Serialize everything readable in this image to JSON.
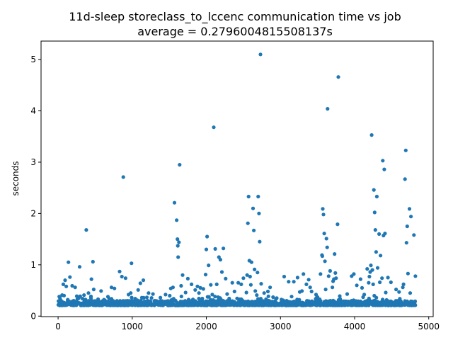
{
  "chart_data": {
    "type": "scatter",
    "title": "11d-sleep storeclass_to_lccenc communication time vs job",
    "subtitle": "average = 0.2796004815508137s",
    "xlabel": "",
    "ylabel": "seconds",
    "xlim": [
      -230,
      5060
    ],
    "ylim": [
      -0.01,
      5.36
    ],
    "xticks": [
      0,
      1000,
      2000,
      3000,
      4000,
      5000
    ],
    "yticks": [
      0,
      1,
      2,
      3,
      4,
      5
    ],
    "grid": false,
    "legend": "none",
    "marker_color": "#1f77b4",
    "points": [
      [
        15,
        0.38
      ],
      [
        40,
        0.3
      ],
      [
        55,
        0.41
      ],
      [
        70,
        0.62
      ],
      [
        80,
        0.4
      ],
      [
        95,
        0.7
      ],
      [
        110,
        0.58
      ],
      [
        130,
        0.32
      ],
      [
        140,
        1.05
      ],
      [
        160,
        0.76
      ],
      [
        190,
        0.59
      ],
      [
        230,
        0.56
      ],
      [
        260,
        0.33
      ],
      [
        290,
        0.96
      ],
      [
        330,
        0.34
      ],
      [
        350,
        0.41
      ],
      [
        380,
        1.68
      ],
      [
        410,
        0.45
      ],
      [
        450,
        0.72
      ],
      [
        470,
        1.06
      ],
      [
        480,
        0.52
      ],
      [
        540,
        0.33
      ],
      [
        580,
        0.49
      ],
      [
        630,
        0.31
      ],
      [
        690,
        0.34
      ],
      [
        720,
        0.56
      ],
      [
        760,
        0.54
      ],
      [
        830,
        0.87
      ],
      [
        860,
        0.77
      ],
      [
        880,
        2.71
      ],
      [
        910,
        0.74
      ],
      [
        950,
        0.42
      ],
      [
        990,
        1.03
      ],
      [
        1040,
        0.34
      ],
      [
        1080,
        0.51
      ],
      [
        1110,
        0.64
      ],
      [
        1130,
        0.36
      ],
      [
        1150,
        0.7
      ],
      [
        1220,
        0.45
      ],
      [
        1280,
        0.43
      ],
      [
        1380,
        0.36
      ],
      [
        1450,
        0.42
      ],
      [
        1520,
        0.54
      ],
      [
        1550,
        0.56
      ],
      [
        1570,
        2.21
      ],
      [
        1600,
        1.87
      ],
      [
        1610,
        1.5
      ],
      [
        1615,
        1.37
      ],
      [
        1620,
        1.15
      ],
      [
        1630,
        1.44
      ],
      [
        1640,
        2.95
      ],
      [
        1660,
        0.59
      ],
      [
        1680,
        0.8
      ],
      [
        1720,
        0.46
      ],
      [
        1750,
        0.73
      ],
      [
        1800,
        0.62
      ],
      [
        1850,
        0.51
      ],
      [
        1880,
        0.58
      ],
      [
        1920,
        0.55
      ],
      [
        1960,
        0.53
      ],
      [
        1990,
        0.81
      ],
      [
        2000,
        1.3
      ],
      [
        2010,
        1.55
      ],
      [
        2030,
        0.99
      ],
      [
        2060,
        0.61
      ],
      [
        2080,
        0.42
      ],
      [
        2100,
        3.68
      ],
      [
        2120,
        1.31
      ],
      [
        2140,
        0.62
      ],
      [
        2170,
        1.15
      ],
      [
        2190,
        1.1
      ],
      [
        2210,
        0.86
      ],
      [
        2230,
        1.32
      ],
      [
        2260,
        0.73
      ],
      [
        2280,
        0.43
      ],
      [
        2350,
        0.65
      ],
      [
        2380,
        0.48
      ],
      [
        2430,
        0.65
      ],
      [
        2470,
        0.33
      ],
      [
        2500,
        0.74
      ],
      [
        2540,
        0.46
      ],
      [
        2560,
        1.81
      ],
      [
        2570,
        2.33
      ],
      [
        2580,
        1.08
      ],
      [
        2590,
        0.77
      ],
      [
        2600,
        0.61
      ],
      [
        2610,
        1.05
      ],
      [
        2630,
        2.1
      ],
      [
        2640,
        1.67
      ],
      [
        2650,
        0.91
      ],
      [
        2660,
        0.49
      ],
      [
        2680,
        0.41
      ],
      [
        2690,
        0.85
      ],
      [
        2700,
        2.33
      ],
      [
        2710,
        2.0
      ],
      [
        2720,
        1.45
      ],
      [
        2730,
        5.1
      ],
      [
        2740,
        0.63
      ],
      [
        2780,
        0.45
      ],
      [
        2830,
        0.48
      ],
      [
        2860,
        0.56
      ],
      [
        2900,
        0.37
      ],
      [
        2950,
        0.35
      ],
      [
        3050,
        0.77
      ],
      [
        3110,
        0.67
      ],
      [
        3150,
        0.38
      ],
      [
        3180,
        0.67
      ],
      [
        3230,
        0.75
      ],
      [
        3260,
        0.47
      ],
      [
        3290,
        0.49
      ],
      [
        3310,
        0.82
      ],
      [
        3350,
        0.62
      ],
      [
        3380,
        0.71
      ],
      [
        3400,
        0.56
      ],
      [
        3420,
        0.48
      ],
      [
        3500,
        0.37
      ],
      [
        3540,
        0.82
      ],
      [
        3560,
        1.19
      ],
      [
        3565,
        1.17
      ],
      [
        3570,
        2.09
      ],
      [
        3580,
        1.98
      ],
      [
        3590,
        1.61
      ],
      [
        3600,
        1.07
      ],
      [
        3610,
        0.52
      ],
      [
        3620,
        1.51
      ],
      [
        3630,
        1.34
      ],
      [
        3635,
        4.04
      ],
      [
        3650,
        0.78
      ],
      [
        3670,
        0.88
      ],
      [
        3700,
        0.56
      ],
      [
        3710,
        0.68
      ],
      [
        3720,
        0.72
      ],
      [
        3730,
        1.21
      ],
      [
        3740,
        0.84
      ],
      [
        3750,
        0.74
      ],
      [
        3770,
        1.79
      ],
      [
        3780,
        4.66
      ],
      [
        3800,
        0.39
      ],
      [
        3900,
        0.43
      ],
      [
        3960,
        0.78
      ],
      [
        3990,
        0.82
      ],
      [
        4030,
        0.6
      ],
      [
        4080,
        0.72
      ],
      [
        4100,
        0.55
      ],
      [
        4170,
        0.92
      ],
      [
        4190,
        0.65
      ],
      [
        4200,
        0.77
      ],
      [
        4210,
        0.86
      ],
      [
        4220,
        0.99
      ],
      [
        4230,
        3.53
      ],
      [
        4240,
        0.9
      ],
      [
        4250,
        0.62
      ],
      [
        4260,
        2.46
      ],
      [
        4270,
        2.02
      ],
      [
        4280,
        1.68
      ],
      [
        4290,
        1.25
      ],
      [
        4300,
        2.33
      ],
      [
        4310,
        0.94
      ],
      [
        4330,
        1.6
      ],
      [
        4340,
        0.66
      ],
      [
        4350,
        1.18
      ],
      [
        4370,
        0.74
      ],
      [
        4380,
        3.03
      ],
      [
        4390,
        1.57
      ],
      [
        4400,
        2.86
      ],
      [
        4410,
        1.61
      ],
      [
        4420,
        0.46
      ],
      [
        4450,
        0.75
      ],
      [
        4490,
        0.66
      ],
      [
        4560,
        0.52
      ],
      [
        4600,
        0.47
      ],
      [
        4650,
        0.56
      ],
      [
        4660,
        0.62
      ],
      [
        4680,
        2.67
      ],
      [
        4690,
        3.23
      ],
      [
        4700,
        1.43
      ],
      [
        4710,
        1.75
      ],
      [
        4720,
        0.83
      ],
      [
        4740,
        2.09
      ],
      [
        4750,
        0.45
      ],
      [
        4760,
        1.94
      ],
      [
        4800,
        1.58
      ],
      [
        4820,
        0.78
      ],
      [
        2550,
        0.8
      ],
      [
        2470,
        0.62
      ],
      [
        1900,
        0.45
      ],
      [
        3480,
        0.42
      ],
      [
        980,
        0.45
      ],
      [
        4130,
        0.42
      ]
    ],
    "band": {
      "x_range": [
        0,
        4820
      ],
      "y_range": [
        0.21,
        0.3
      ],
      "note": "dense cluster of points near the baseline across all jobs"
    }
  }
}
